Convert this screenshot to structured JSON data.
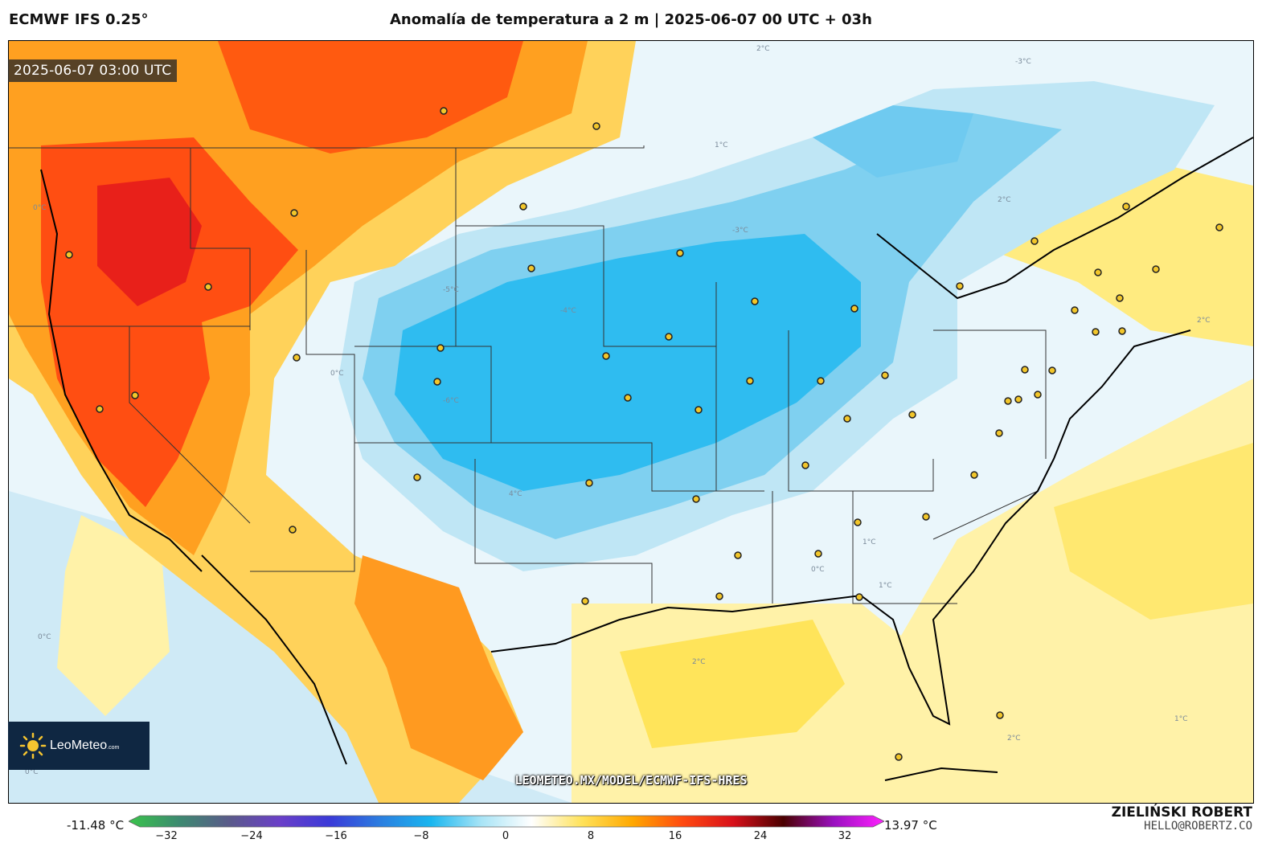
{
  "header": {
    "model": "ECMWF IFS 0.25°",
    "title": "Anomalía de temperatura a 2 m | 2025-06-07 00 UTC + 03h"
  },
  "map": {
    "valid_time": "2025-06-07 03:00 UTC",
    "logo_text": "LeoMeteo",
    "logo_suffix": ".com",
    "source_url": "LEOMETEO.MX/MODEL/ECMWF-IFS-HRES",
    "contour_labels": [
      "2°C",
      "-3°C",
      "1°C",
      "2°C",
      "0°C",
      "-3°C",
      "-4°C",
      "-5°C",
      "0°C",
      "-6°C",
      "4°C",
      "2°C",
      "1°C",
      "0°C",
      "1°C",
      "2°C",
      "2°C",
      "1°C",
      "0°C",
      "0°C"
    ]
  },
  "colorbar": {
    "min_label": "-11.48 °C",
    "max_label": "13.97 °C",
    "ticks": [
      "−32",
      "−24",
      "−16",
      "−8",
      "0",
      "8",
      "16",
      "24",
      "32"
    ],
    "colors": [
      "#39c44b",
      "#3d8a70",
      "#5a5a8a",
      "#6a3fc8",
      "#3a3ad8",
      "#2b7ee0",
      "#19b6ef",
      "#a8e4f6",
      "#ffffff",
      "#ffe25a",
      "#ffa800",
      "#ff4a10",
      "#d8101a",
      "#4a0000",
      "#9a10c0",
      "#ff20ff"
    ]
  },
  "credits": {
    "author": "ZIELIŃSKI ROBERT",
    "email": "HELLO@ROBERTZ.CO"
  }
}
